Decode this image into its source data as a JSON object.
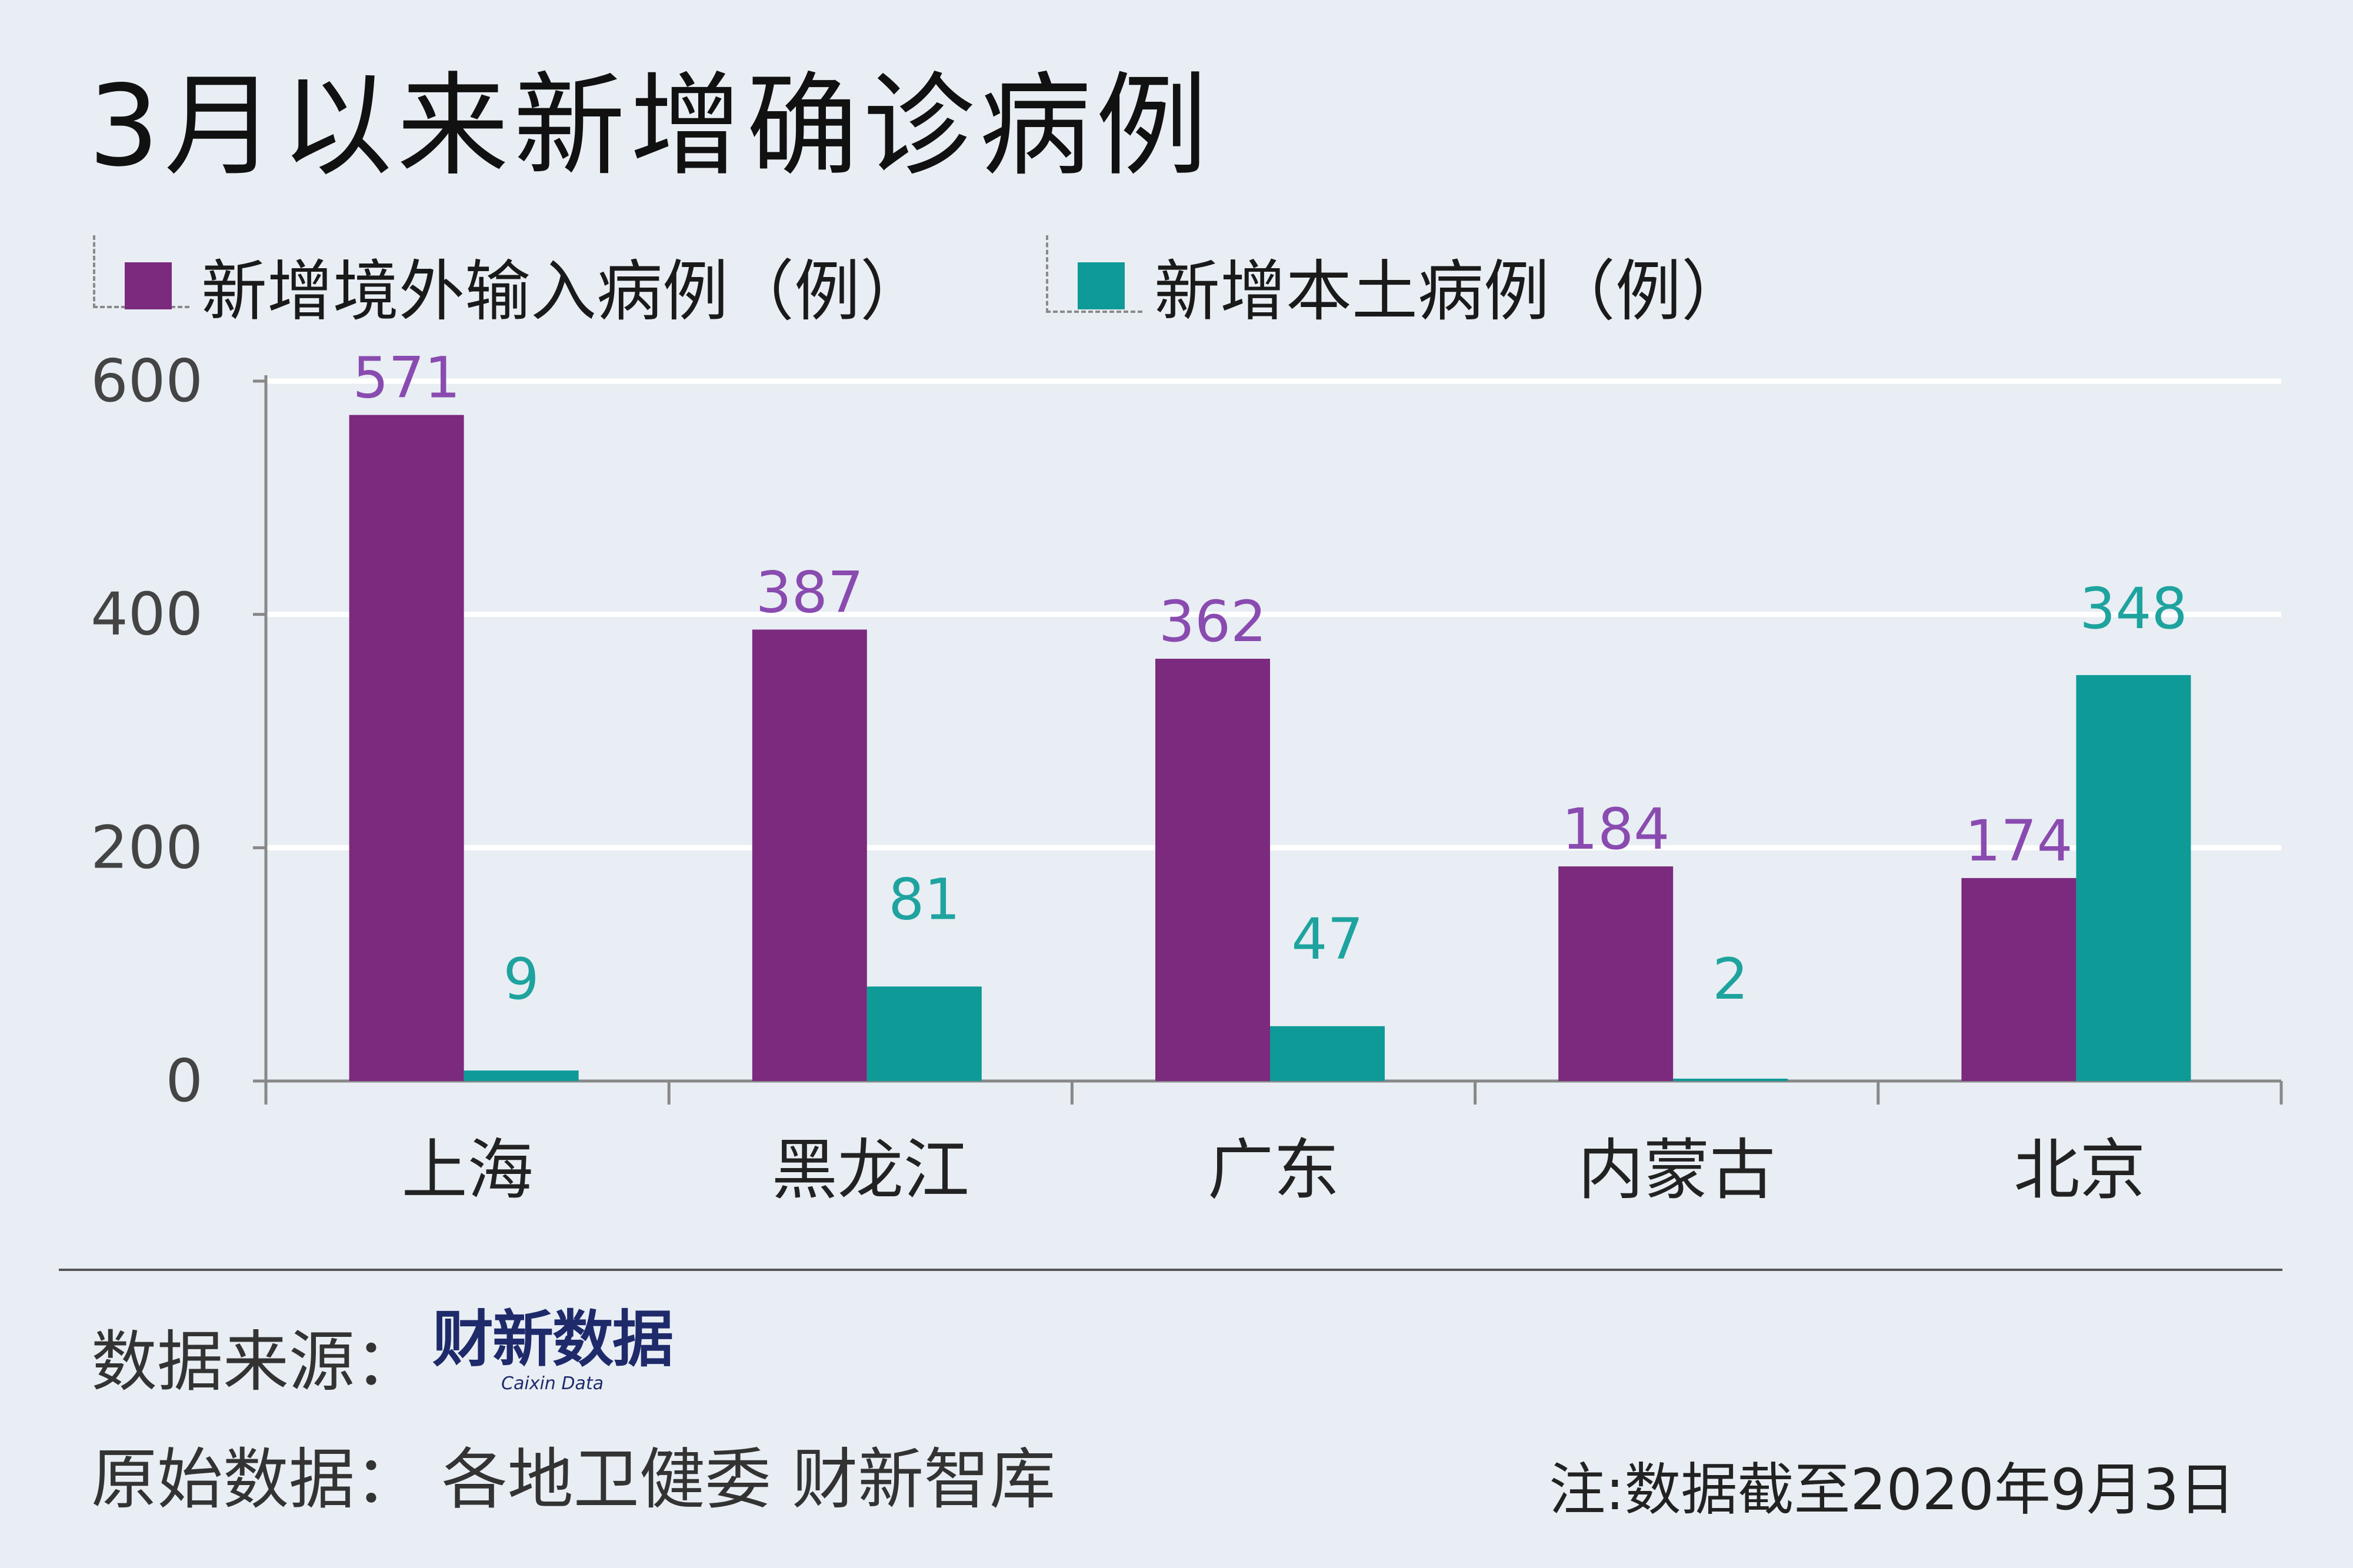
{
  "title": "3月以来新增确诊病例",
  "legend": [
    {
      "label": "新增境外输入病例（例）",
      "color": "#7b2a7e"
    },
    {
      "label": "新增本土病例（例）",
      "color": "#0e9a97"
    }
  ],
  "chart_data": {
    "type": "bar",
    "title": "3月以来新增确诊病例",
    "categories": [
      "上海",
      "黑龙江",
      "广东",
      "内蒙古",
      "北京"
    ],
    "series": [
      {
        "name": "新增境外输入病例（例）",
        "values": [
          571,
          387,
          362,
          184,
          174
        ],
        "color": "#7b2a7e",
        "label_color": "#8a4bb0"
      },
      {
        "name": "新增本土病例（例）",
        "values": [
          9,
          81,
          47,
          2,
          348
        ],
        "color": "#0e9a97",
        "label_color": "#1ea39f"
      }
    ],
    "yticks": [
      "0",
      "200",
      "400",
      "600"
    ],
    "ylim": [
      0,
      600
    ],
    "xlabel": "",
    "ylabel": "",
    "grid": true
  },
  "footer": {
    "source_label": "数据来源：",
    "logo_main": "财新数据",
    "logo_sub": "Caixin Data",
    "origin": "原始数据：  各地卫健委  财新智库",
    "note": "注:数据截至2020年9月3日"
  }
}
